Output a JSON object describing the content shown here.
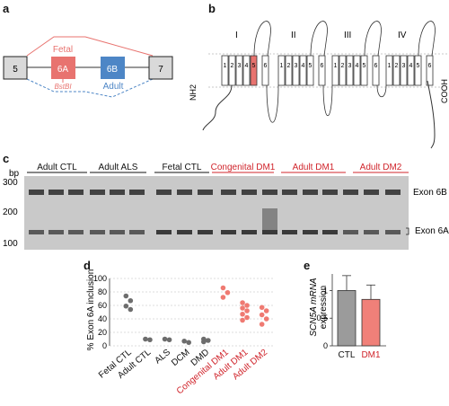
{
  "panels": {
    "a": {
      "letter": "a",
      "exon_5": "5",
      "exon_6a": "6A",
      "exon_6b": "6B",
      "exon_7": "7",
      "fetal_label": "Fetal",
      "adult_label": "Adult",
      "enzyme_label": "BstBI",
      "colors": {
        "fetal": "#e8736f",
        "adult": "#4d86c6"
      }
    },
    "b": {
      "letter": "b",
      "domains": [
        "I",
        "II",
        "III",
        "IV"
      ],
      "nh2_label": "NH2",
      "cooh_label": "COOH",
      "segments": [
        "1",
        "2",
        "3",
        "4",
        "5",
        "6"
      ]
    },
    "c": {
      "letter": "c",
      "bp_label": "bp",
      "ladder": [
        "300",
        "200",
        "100"
      ],
      "groups": [
        {
          "label": "Adult CTL",
          "color": "#111111"
        },
        {
          "label": "Adult ALS",
          "color": "#111111"
        },
        {
          "label": "Fetal CTL",
          "color": "#111111"
        },
        {
          "label": "Congenital DM1",
          "color": "#d0242b"
        },
        {
          "label": "Adult DM1",
          "color": "#d0242b"
        },
        {
          "label": "Adult DM2",
          "color": "#d0242b"
        }
      ],
      "band_6b": "Exon 6B",
      "band_6a": "Exon 6A"
    },
    "d": {
      "letter": "d",
      "ylabel": "% Exon 6A inclusion",
      "yticks": [
        "0",
        "20",
        "40",
        "60",
        "80",
        "100"
      ],
      "categories": [
        "Fetal CTL",
        "Adult CTL",
        "ALS",
        "DCM",
        "DMD",
        "Congenital DM1",
        "Adult DM1",
        "Adult DM2"
      ],
      "category_colors": [
        "#111111",
        "#111111",
        "#111111",
        "#111111",
        "#111111",
        "#d0242b",
        "#d0242b",
        "#d0242b"
      ]
    },
    "e": {
      "letter": "e",
      "ylabel_gene": "SCN5A mRNA",
      "ylabel_rest": "expression",
      "yticks": [
        "0",
        "0.5",
        "1"
      ],
      "categories": [
        "CTL",
        "DM1"
      ],
      "category_colors": [
        "#111111",
        "#d0242b"
      ]
    }
  },
  "chart_data": [
    {
      "type": "scatter",
      "panel": "d",
      "ylabel": "% Exon 6A inclusion",
      "ylim": [
        0,
        100
      ],
      "categories": [
        "Fetal CTL",
        "Adult CTL",
        "ALS",
        "DCM",
        "DMD",
        "Congenital DM1",
        "Adult DM1",
        "Adult DM2"
      ],
      "series": [
        {
          "category": "Fetal CTL",
          "color": "#6d6d6d",
          "values": [
            74,
            67,
            59,
            54
          ]
        },
        {
          "category": "Adult CTL",
          "color": "#6d6d6d",
          "values": [
            10,
            9
          ]
        },
        {
          "category": "ALS",
          "color": "#6d6d6d",
          "values": [
            10,
            9
          ]
        },
        {
          "category": "DCM",
          "color": "#6d6d6d",
          "values": [
            7,
            5
          ]
        },
        {
          "category": "DMD",
          "color": "#6d6d6d",
          "values": [
            10,
            8,
            6
          ]
        },
        {
          "category": "Congenital DM1",
          "color": "#ef7a72",
          "values": [
            86,
            79,
            72
          ]
        },
        {
          "category": "Adult DM1",
          "color": "#ef7a72",
          "values": [
            64,
            60,
            56,
            52,
            47,
            42,
            38
          ]
        },
        {
          "category": "Adult DM2",
          "color": "#ef7a72",
          "values": [
            57,
            52,
            46,
            40,
            32
          ]
        }
      ]
    },
    {
      "type": "bar",
      "panel": "e",
      "categories": [
        "CTL",
        "DM1"
      ],
      "values": [
        1.0,
        0.84
      ],
      "errors": [
        0.27,
        0.26
      ],
      "colors": [
        "#9b9b9b",
        "#f08079"
      ],
      "ylim": [
        0,
        1.3
      ]
    }
  ]
}
